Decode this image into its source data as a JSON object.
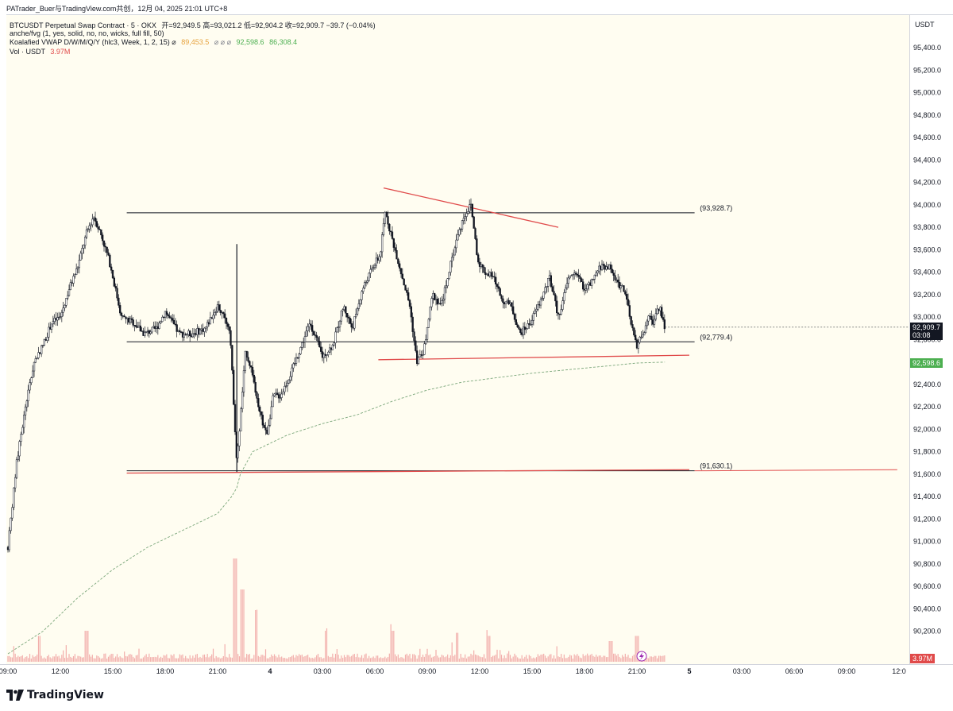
{
  "credit": "PATrader_Buer与TradingView.com共创，12月 04, 2025 21:01 UTC+8",
  "legend": {
    "line1_symbol": "BTCUSDT Perpetual Swap Contract · 5 · OKX",
    "line1_ohlc": "开=92,949.5 高=93,021.2 低=92,904.2 收=92,909.7 −39.7 (−0.04%)",
    "line2": "anche/fvg (1, yes, solid, no, no, wicks, full fill, 50)",
    "line3_name": "Koalafied VWAP D/W/M/Q/Y  (hlc3, Week, 1, 2, 15)  ⌀",
    "line3_v1": "89,453.5",
    "line3_sep": "⌀  ⌀  ⌀",
    "line3_v2": "92,598.6",
    "line3_v3": "86,308.4",
    "line4_name": "Vol · USDT",
    "line4_val": "3.97M"
  },
  "price_axis": {
    "currency": "USDT",
    "current_price": "92,909.7",
    "countdown": "03:08",
    "vwap_value": "92,598.6",
    "volume_value": "3.97M"
  },
  "footer": {
    "brand": "TradingView"
  },
  "colors": {
    "bg": "#fffdf1",
    "candle": "#131722",
    "trendline": "#e04a4a",
    "level": "#131722",
    "vwap": "#7aa67a",
    "volume": "#ef9a9a",
    "current_price_tag": "#131722",
    "vwap_tag": "#4caf50",
    "vol_tag": "#e04a4a"
  },
  "chart_data": {
    "type": "candlestick",
    "symbol": "BTCUSDT",
    "interval": "5",
    "ylim": [
      90000,
      95600
    ],
    "y_ticks": [
      90200,
      90400,
      90600,
      90800,
      91000,
      91200,
      91400,
      91600,
      91800,
      92000,
      92200,
      92400,
      92600,
      92800,
      93000,
      93200,
      93400,
      93600,
      93800,
      94000,
      94200,
      94400,
      94600,
      94800,
      95000,
      95200,
      95400
    ],
    "x_ticks": [
      "09:00",
      "12:00",
      "15:00",
      "18:00",
      "21:00",
      "4",
      "03:00",
      "06:00",
      "09:00",
      "12:00",
      "15:00",
      "18:00",
      "21:00",
      "5",
      "03:00",
      "06:00",
      "09:00",
      "12:0"
    ],
    "x_tick_hours": [
      9,
      12,
      15,
      18,
      21,
      24,
      27,
      30,
      33,
      36,
      39,
      42,
      45,
      48,
      51,
      54,
      57,
      60
    ],
    "price_path_hours": [
      9.0,
      9.5,
      10.0,
      10.5,
      11.0,
      11.5,
      12.0,
      12.5,
      13.0,
      13.5,
      13.9,
      14.3,
      14.8,
      15.5,
      16.2,
      16.8,
      17.5,
      18.0,
      18.8,
      19.5,
      20.3,
      21.0,
      21.7,
      22.1,
      22.3,
      22.6,
      23.0,
      23.3,
      23.8,
      24.2,
      24.6,
      25.2,
      25.8,
      26.3,
      27.0,
      27.6,
      28.2,
      28.7,
      29.3,
      29.9,
      30.3,
      30.6,
      30.9,
      31.5,
      32.0,
      32.4,
      32.8,
      33.3,
      33.8,
      34.3,
      34.7,
      35.1,
      35.5,
      35.9,
      36.3,
      36.8,
      37.3,
      37.8,
      38.3,
      38.9,
      39.5,
      40.0,
      40.5,
      41.1,
      41.5,
      42.0,
      42.4,
      42.9,
      43.4,
      43.9,
      44.3,
      44.7,
      45.0,
      45.3,
      45.5,
      45.7,
      45.9,
      46.0,
      46.3,
      46.6
    ],
    "price_path_values": [
      90950,
      91700,
      92200,
      92600,
      92750,
      92950,
      93000,
      93250,
      93450,
      93750,
      93900,
      93750,
      93500,
      93000,
      92950,
      92850,
      92900,
      93050,
      92850,
      92850,
      92900,
      93100,
      92900,
      91700,
      92100,
      92700,
      92500,
      92200,
      91950,
      92300,
      92300,
      92500,
      92750,
      92950,
      92650,
      92750,
      93100,
      92900,
      93250,
      93450,
      93550,
      93950,
      93750,
      93400,
      93100,
      92600,
      92700,
      93200,
      93100,
      93450,
      93700,
      93900,
      94000,
      93500,
      93400,
      93350,
      93150,
      93100,
      92850,
      92950,
      93150,
      93350,
      93000,
      93350,
      93400,
      93250,
      93300,
      93450,
      93450,
      93300,
      93250,
      92900,
      92750,
      92850,
      92900,
      93000,
      92950,
      93000,
      93100,
      92910
    ],
    "vwap_hours": [
      9.0,
      11.0,
      13.0,
      15.0,
      17.0,
      19.0,
      21.0,
      21.8,
      22.1,
      22.3,
      23.0,
      25.0,
      27.0,
      29.0,
      31.0,
      33.0,
      35.0,
      37.0,
      39.0,
      41.0,
      43.0,
      45.0,
      46.6
    ],
    "vwap_values": [
      90000,
      90200,
      90500,
      90750,
      90950,
      91100,
      91250,
      91400,
      91480,
      91600,
      91800,
      91950,
      92050,
      92130,
      92250,
      92350,
      92420,
      92460,
      92500,
      92530,
      92560,
      92590,
      92598.6
    ],
    "levels": [
      {
        "label": "(93,928.7)",
        "value": 93928.7
      },
      {
        "label": "(92,779.4)",
        "value": 92779.4
      },
      {
        "label": "(91,630.1)",
        "value": 91630.1
      }
    ],
    "trendlines": [
      {
        "from": [
          30.5,
          94150
        ],
        "to": [
          40.5,
          93800
        ]
      },
      {
        "from": [
          30.2,
          92620
        ],
        "to": [
          48.0,
          92660
        ]
      },
      {
        "from": [
          15.8,
          91610
        ],
        "to": [
          48.0,
          91640
        ]
      }
    ],
    "volume_spikes_hours": [
      10.8,
      13.5,
      22.0,
      22.4,
      23.2,
      27.2,
      31.0,
      34.7,
      36.5,
      43.5,
      45.0
    ],
    "volume_spikes_values": [
      0.25,
      0.3,
      1.0,
      0.7,
      0.5,
      0.3,
      0.3,
      0.28,
      0.25,
      0.2,
      0.25
    ],
    "title": "BTCUSDT Perpetual Swap Contract · 5 · OKX"
  }
}
